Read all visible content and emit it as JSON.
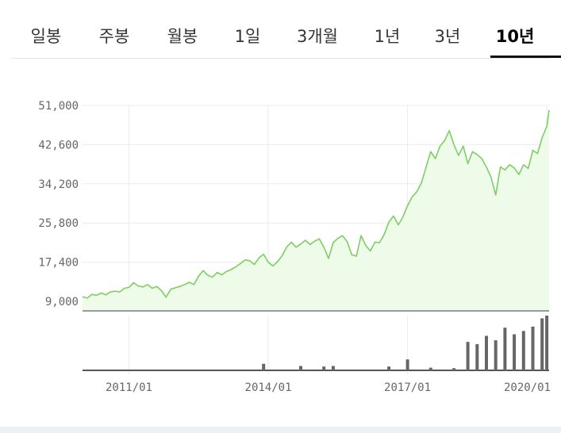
{
  "tabs": [
    {
      "label": "일봉",
      "active": false
    },
    {
      "label": "주봉",
      "active": false
    },
    {
      "label": "월봉",
      "active": false
    },
    {
      "label": "1일",
      "active": false
    },
    {
      "label": "3개월",
      "active": false
    },
    {
      "label": "1년",
      "active": false
    },
    {
      "label": "3년",
      "active": false
    },
    {
      "label": "10년",
      "active": true
    }
  ],
  "chart_data": {
    "type": "area",
    "title": "",
    "xlabel": "",
    "ylabel": "",
    "grid": true,
    "ylim": [
      9000,
      51000
    ],
    "y_ticks": [
      "51,000",
      "42,600",
      "34,200",
      "25,800",
      "17,400",
      "9,000"
    ],
    "y_tick_values": [
      51000,
      42600,
      34200,
      25800,
      17400,
      9000
    ],
    "x_ticks": [
      "2011/01",
      "2014/01",
      "2017/01",
      "2020/01"
    ],
    "x_tick_values": [
      2011.0,
      2014.0,
      2017.0,
      2020.0
    ],
    "xlim": [
      2010.0,
      2020.05
    ],
    "series": [
      {
        "x": [
          2010.0,
          2010.1,
          2010.2,
          2010.3,
          2010.4,
          2010.5,
          2010.6,
          2010.7,
          2010.8,
          2010.9,
          2011.0,
          2011.1,
          2011.2,
          2011.3,
          2011.4,
          2011.5,
          2011.6,
          2011.7,
          2011.8,
          2011.9,
          2012.0,
          2012.1,
          2012.2,
          2012.3,
          2012.4,
          2012.5,
          2012.6,
          2012.7,
          2012.8,
          2012.9,
          2013.0,
          2013.1,
          2013.2,
          2013.3,
          2013.4,
          2013.5,
          2013.6,
          2013.7,
          2013.8,
          2013.9,
          2014.0,
          2014.1,
          2014.2,
          2014.3,
          2014.4,
          2014.5,
          2014.6,
          2014.7,
          2014.8,
          2014.9,
          2015.0,
          2015.1,
          2015.2,
          2015.3,
          2015.4,
          2015.5,
          2015.6,
          2015.7,
          2015.8,
          2015.9,
          2016.0,
          2016.1,
          2016.2,
          2016.3,
          2016.4,
          2016.5,
          2016.6,
          2016.7,
          2016.8,
          2016.9,
          2017.0,
          2017.1,
          2017.2,
          2017.3,
          2017.4,
          2017.5,
          2017.6,
          2017.7,
          2017.8,
          2017.9,
          2018.0,
          2018.1,
          2018.2,
          2018.3,
          2018.4,
          2018.5,
          2018.6,
          2018.7,
          2018.8,
          2018.9,
          2019.0,
          2019.1,
          2019.2,
          2019.3,
          2019.4,
          2019.5,
          2019.6,
          2019.7,
          2019.8,
          2019.9,
          2020.0,
          2020.05
        ],
        "values": [
          10000,
          9700,
          10500,
          10300,
          10800,
          10400,
          11000,
          11200,
          11000,
          11800,
          12000,
          13000,
          12300,
          12100,
          12600,
          11800,
          12200,
          11300,
          9900,
          11600,
          11900,
          12200,
          12600,
          13100,
          12600,
          14400,
          15600,
          14600,
          14200,
          15200,
          14700,
          15400,
          15800,
          16400,
          17100,
          17900,
          17700,
          16900,
          18300,
          19100,
          17400,
          16600,
          17500,
          18800,
          20700,
          21700,
          20600,
          21300,
          22100,
          21200,
          21900,
          22400,
          20600,
          18200,
          21600,
          22500,
          23100,
          21800,
          19000,
          18700,
          23100,
          21000,
          19800,
          21700,
          21600,
          23400,
          26000,
          27300,
          25400,
          27100,
          29500,
          31400,
          32500,
          34400,
          37800,
          41100,
          39600,
          42300,
          43500,
          45600,
          42600,
          40300,
          42300,
          38500,
          41100,
          40500,
          39600,
          37800,
          35600,
          31800,
          37800,
          37200,
          38300,
          37600,
          36200,
          38300,
          37500,
          41400,
          40700,
          44100,
          46500,
          50000
        ]
      }
    ],
    "volume": [
      {
        "x": 2013.9,
        "v": 0.12
      },
      {
        "x": 2014.7,
        "v": 0.08
      },
      {
        "x": 2015.2,
        "v": 0.07
      },
      {
        "x": 2015.4,
        "v": 0.08
      },
      {
        "x": 2016.6,
        "v": 0.07
      },
      {
        "x": 2017.0,
        "v": 0.2
      },
      {
        "x": 2017.5,
        "v": 0.05
      },
      {
        "x": 2018.0,
        "v": 0.04
      },
      {
        "x": 2018.3,
        "v": 0.52
      },
      {
        "x": 2018.5,
        "v": 0.48
      },
      {
        "x": 2018.7,
        "v": 0.63
      },
      {
        "x": 2018.9,
        "v": 0.55
      },
      {
        "x": 2019.1,
        "v": 0.78
      },
      {
        "x": 2019.3,
        "v": 0.66
      },
      {
        "x": 2019.5,
        "v": 0.72
      },
      {
        "x": 2019.7,
        "v": 0.8
      },
      {
        "x": 2019.9,
        "v": 0.95
      },
      {
        "x": 2020.0,
        "v": 1.0
      }
    ],
    "colors": {
      "line": "#7ccf62",
      "area": "#eefbe8",
      "volume": "#666666",
      "grid": "#ececec",
      "axis": "#9a9a9a"
    }
  }
}
